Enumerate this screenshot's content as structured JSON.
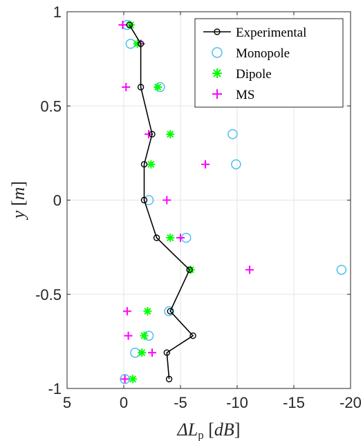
{
  "chart_data": {
    "type": "scatter",
    "xlabel": "ΔL",
    "xlabel_sub": "p",
    "xlabel_unit": "dB",
    "ylabel_var": "y",
    "ylabel_unit": "m",
    "xlim": [
      5,
      -20
    ],
    "ylim": [
      -1,
      1
    ],
    "x_ticks": [
      5,
      0,
      -5,
      -10,
      -15,
      -20
    ],
    "x_tick_labels": [
      "5",
      "0",
      "-5",
      "-10",
      "-15",
      "-20"
    ],
    "y_ticks": [
      1,
      0.5,
      0,
      -0.5,
      -1
    ],
    "y_tick_labels": [
      "1",
      "0.5",
      "0",
      "-0.5",
      "-1"
    ],
    "grid": true,
    "legend_position": "top-right",
    "series": [
      {
        "name": "Experimental",
        "marker": "circle-line",
        "color": "#000000",
        "points": [
          {
            "x": -0.5,
            "y": 0.93
          },
          {
            "x": -1.5,
            "y": 0.83
          },
          {
            "x": -1.5,
            "y": 0.6
          },
          {
            "x": -2.5,
            "y": 0.35
          },
          {
            "x": -1.8,
            "y": 0.19
          },
          {
            "x": -1.8,
            "y": 0.0
          },
          {
            "x": -2.9,
            "y": -0.2
          },
          {
            "x": -5.8,
            "y": -0.37
          },
          {
            "x": -4.1,
            "y": -0.59
          },
          {
            "x": -6.1,
            "y": -0.72
          },
          {
            "x": -3.8,
            "y": -0.81
          },
          {
            "x": -4.0,
            "y": -0.95
          }
        ]
      },
      {
        "name": "Monopole",
        "marker": "circle",
        "color": "#4DBEEE",
        "points": [
          {
            "x": -0.3,
            "y": 0.93
          },
          {
            "x": -0.6,
            "y": 0.83
          },
          {
            "x": -3.2,
            "y": 0.6
          },
          {
            "x": -9.6,
            "y": 0.35
          },
          {
            "x": -9.9,
            "y": 0.19
          },
          {
            "x": -2.2,
            "y": 0.0
          },
          {
            "x": -5.5,
            "y": -0.2
          },
          {
            "x": -19.2,
            "y": -0.37
          },
          {
            "x": -4.0,
            "y": -0.59
          },
          {
            "x": -2.2,
            "y": -0.72
          },
          {
            "x": -1.0,
            "y": -0.81
          },
          {
            "x": -0.1,
            "y": -0.95
          }
        ]
      },
      {
        "name": "Dipole",
        "marker": "asterisk",
        "color": "#00FF00",
        "points": [
          {
            "x": -0.6,
            "y": 0.93
          },
          {
            "x": -1.2,
            "y": 0.83
          },
          {
            "x": -3.0,
            "y": 0.6
          },
          {
            "x": -4.1,
            "y": 0.35
          },
          {
            "x": -2.4,
            "y": 0.19
          },
          {
            "x": -4.1,
            "y": -0.2
          },
          {
            "x": -5.9,
            "y": -0.37
          },
          {
            "x": -2.1,
            "y": -0.59
          },
          {
            "x": -1.8,
            "y": -0.72
          },
          {
            "x": -1.6,
            "y": -0.81
          },
          {
            "x": -0.8,
            "y": -0.95
          }
        ]
      },
      {
        "name": "MS",
        "marker": "plus",
        "color": "#FF00FF",
        "points": [
          {
            "x": 0.1,
            "y": 0.93
          },
          {
            "x": -1.5,
            "y": 0.83
          },
          {
            "x": -0.2,
            "y": 0.6
          },
          {
            "x": -2.2,
            "y": 0.35
          },
          {
            "x": -7.2,
            "y": 0.19
          },
          {
            "x": -3.8,
            "y": 0.0
          },
          {
            "x": -5.0,
            "y": -0.2
          },
          {
            "x": -11.1,
            "y": -0.37
          },
          {
            "x": -0.3,
            "y": -0.59
          },
          {
            "x": -0.4,
            "y": -0.72
          },
          {
            "x": -2.5,
            "y": -0.81
          },
          {
            "x": -0.1,
            "y": -0.95
          }
        ]
      }
    ]
  }
}
